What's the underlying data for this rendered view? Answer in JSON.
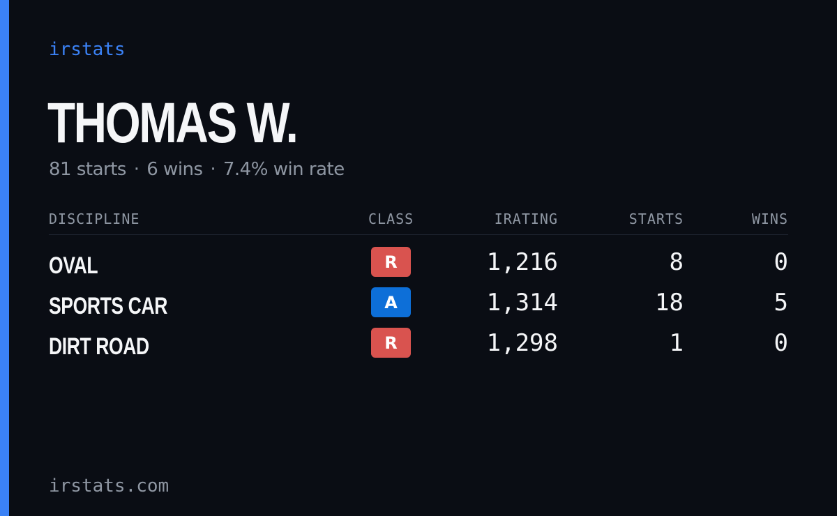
{
  "brand": "irstats",
  "driver": {
    "name": "THOMAS W.",
    "starts_text": "81 starts",
    "wins_text": "6 wins",
    "winrate_text": "7.4% win rate",
    "separator": "·"
  },
  "table": {
    "headers": {
      "discipline": "DISCIPLINE",
      "class": "CLASS",
      "irating": "IRATING",
      "starts": "STARTS",
      "wins": "WINS"
    },
    "rows": [
      {
        "discipline": "OVAL",
        "class": "R",
        "class_color": "#d9534f",
        "irating": "1,216",
        "starts": "8",
        "wins": "0"
      },
      {
        "discipline": "SPORTS CAR",
        "class": "A",
        "class_color": "#0d6fd8",
        "irating": "1,314",
        "starts": "18",
        "wins": "5"
      },
      {
        "discipline": "DIRT ROAD",
        "class": "R",
        "class_color": "#d9534f",
        "irating": "1,298",
        "starts": "1",
        "wins": "0"
      }
    ]
  },
  "footer": "irstats.com",
  "colors": {
    "background": "#0a0d14",
    "accent": "#3b82f6",
    "muted": "#8f97a3",
    "text": "#f5f6f8"
  }
}
